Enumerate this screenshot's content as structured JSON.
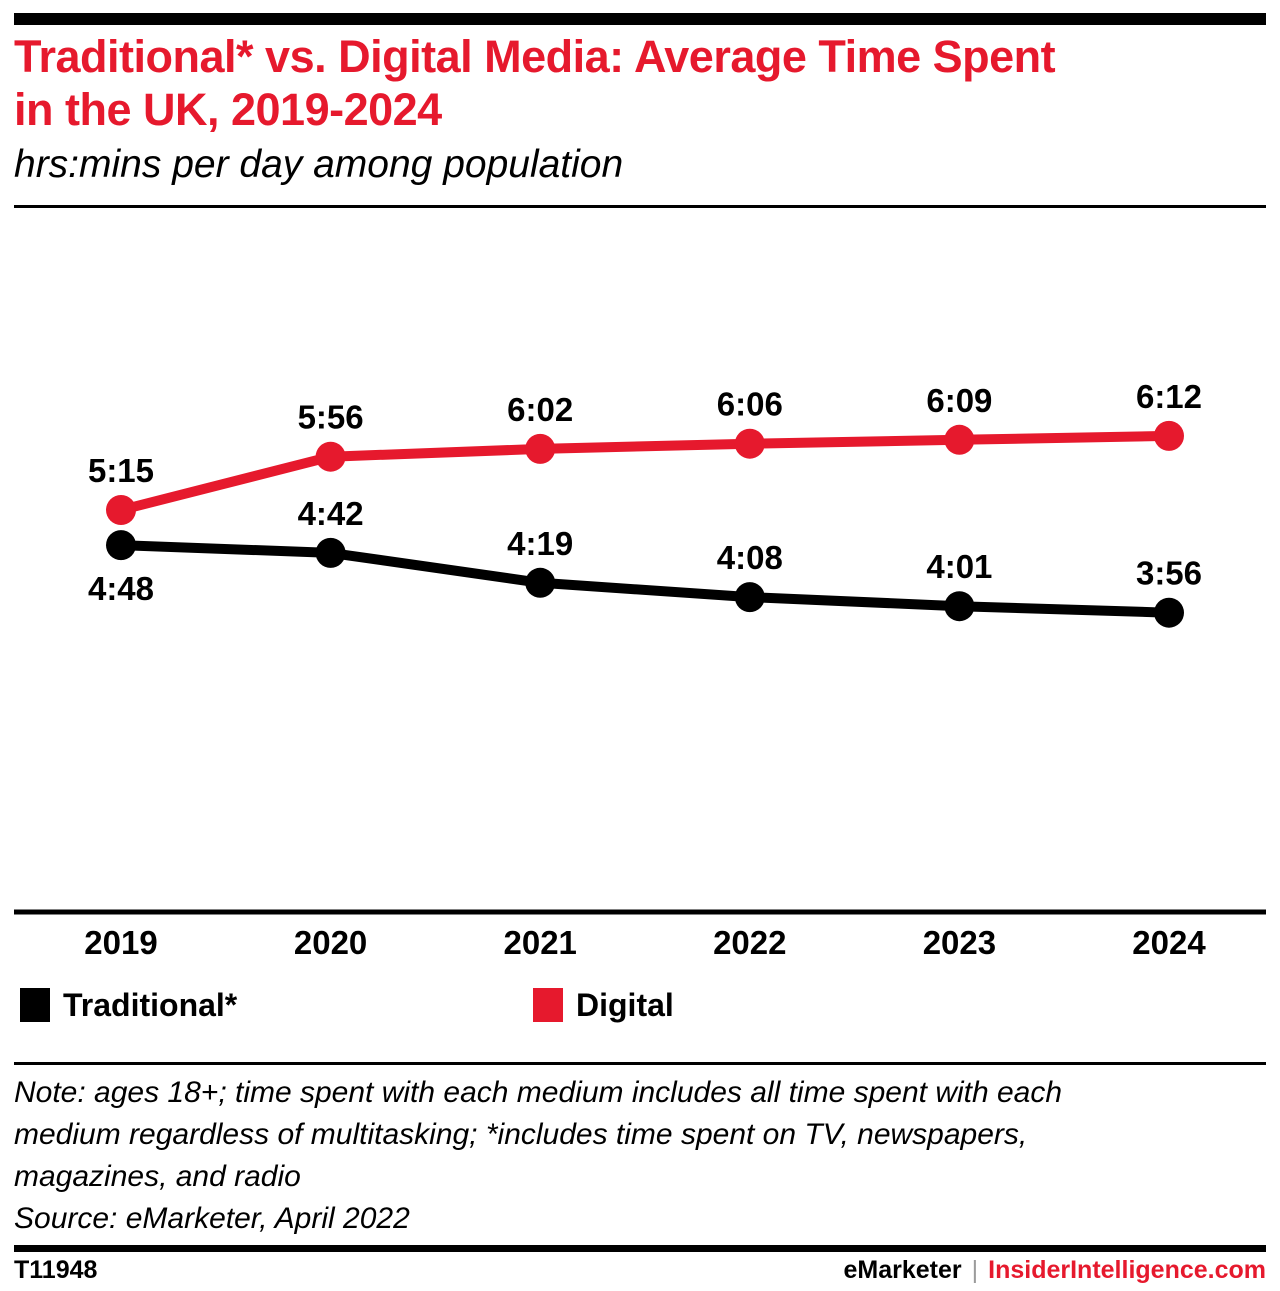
{
  "colors": {
    "accent": "#e6192d",
    "black": "#000000",
    "separator_gray": "#9b9b9b"
  },
  "header": {
    "title": "Traditional* vs. Digital Media: Average Time Spent in the UK, 2019-2024",
    "title_lines": [
      "Traditional* vs. Digital Media: Average Time Spent",
      "in the UK, 2019-2024"
    ],
    "subtitle": "hrs:mins per day among population"
  },
  "chart_data": {
    "type": "line",
    "title": "Traditional* vs. Digital Media: Average Time Spent in the UK, 2019-2024",
    "units": "hrs:mins per day among population",
    "x_categories": [
      "2019",
      "2020",
      "2021",
      "2022",
      "2023",
      "2024"
    ],
    "series": [
      {
        "name": "Traditional*",
        "color": "#000000",
        "values_hhmm": [
          "4:48",
          "4:42",
          "4:19",
          "4:08",
          "4:01",
          "3:56"
        ],
        "values_minutes": [
          288,
          282,
          259,
          248,
          241,
          236
        ],
        "label_side": [
          "below",
          "above",
          "above",
          "above",
          "above",
          "above"
        ]
      },
      {
        "name": "Digital",
        "color": "#e6192d",
        "values_hhmm": [
          "5:15",
          "5:56",
          "6:02",
          "6:06",
          "6:09",
          "6:12"
        ],
        "values_minutes": [
          315,
          356,
          362,
          366,
          369,
          372
        ],
        "label_side": [
          "above",
          "above",
          "above",
          "above",
          "above",
          "above"
        ]
      }
    ],
    "y_value_range_minutes": [
      236,
      372
    ],
    "grid": false,
    "legend_position": "bottom"
  },
  "legend": {
    "items": [
      {
        "label": "Traditional*",
        "color": "#000000"
      },
      {
        "label": "Digital",
        "color": "#e6192d"
      }
    ]
  },
  "footnote": {
    "note_lines": [
      "Note: ages 18+; time spent with each medium includes all time spent with each",
      "medium regardless of multitasking; *includes time spent on TV, newspapers,",
      "magazines, and radio"
    ],
    "source": "Source: eMarketer, April 2022"
  },
  "footer": {
    "chart_id": "T11948",
    "brand": "eMarketer",
    "separator": "|",
    "site": "InsiderIntelligence.com"
  }
}
